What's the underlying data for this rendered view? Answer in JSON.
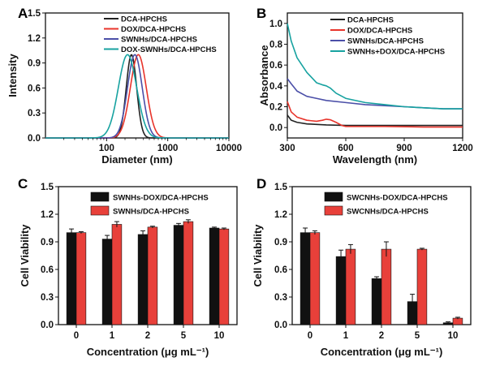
{
  "chart_data": [
    {
      "panel": "A",
      "type": "line",
      "xlabel": "Diameter (nm)",
      "ylabel": "Intensity",
      "xscale": "log",
      "xlim": [
        10,
        10000
      ],
      "ylim": [
        0,
        1.5
      ],
      "xticks": [
        "100",
        "1000",
        "10000"
      ],
      "yticks": [
        "0.0",
        "0.3",
        "0.6",
        "0.9",
        "1.2",
        "1.5"
      ],
      "legend_position": "top-right",
      "series": [
        {
          "name": "DCA-HPCHS",
          "color": "#222222",
          "peak": 255,
          "width": 0.085
        },
        {
          "name": "DOX/DCA-HPCHS",
          "color": "#e8342b",
          "peak": 330,
          "width": 0.13
        },
        {
          "name": "SWNHs/DCA-HPCHS",
          "color": "#4b4fa8",
          "peak": 290,
          "width": 0.12
        },
        {
          "name": "DOX-SWNHs/DCA-HPCHS",
          "color": "#17a2a0",
          "peak": 220,
          "width": 0.15
        }
      ]
    },
    {
      "panel": "B",
      "type": "line",
      "xlabel": "Wavelength (nm)",
      "ylabel": "Absorbance",
      "xlim": [
        300,
        1200
      ],
      "ylim": [
        -0.1,
        1.1
      ],
      "xticks": [
        "300",
        "600",
        "900",
        "1200"
      ],
      "yticks": [
        "0.0",
        "0.2",
        "0.4",
        "0.6",
        "0.8",
        "1.0"
      ],
      "legend_position": "top-right",
      "series": [
        {
          "name": "DCA-HPCHS",
          "color": "#222222",
          "x": [
            300,
            320,
            350,
            400,
            450,
            500,
            600,
            800,
            1000,
            1200
          ],
          "y": [
            0.12,
            0.07,
            0.05,
            0.035,
            0.03,
            0.025,
            0.02,
            0.02,
            0.02,
            0.02
          ]
        },
        {
          "name": "DOX/DCA-HPCHS",
          "color": "#e8342b",
          "x": [
            300,
            320,
            350,
            400,
            450,
            480,
            500,
            520,
            550,
            580,
            600,
            700,
            800,
            1000,
            1200
          ],
          "y": [
            0.25,
            0.15,
            0.1,
            0.07,
            0.06,
            0.07,
            0.08,
            0.075,
            0.05,
            0.02,
            0.01,
            0.01,
            0.01,
            0.005,
            0.005
          ]
        },
        {
          "name": "SWNHs/DCA-HPCHS",
          "color": "#4b4fa8",
          "x": [
            300,
            320,
            350,
            400,
            450,
            500,
            600,
            700,
            800,
            900,
            1000,
            1100,
            1200
          ],
          "y": [
            0.47,
            0.42,
            0.35,
            0.3,
            0.28,
            0.26,
            0.24,
            0.22,
            0.21,
            0.2,
            0.19,
            0.18,
            0.18
          ]
        },
        {
          "name": "SWNHs+DOX/DCA-HPCHS",
          "color": "#17a2a0",
          "x": [
            300,
            320,
            350,
            400,
            450,
            480,
            500,
            520,
            550,
            600,
            700,
            800,
            900,
            1000,
            1100,
            1200
          ],
          "y": [
            1.0,
            0.83,
            0.67,
            0.53,
            0.43,
            0.41,
            0.4,
            0.38,
            0.33,
            0.28,
            0.24,
            0.22,
            0.2,
            0.19,
            0.18,
            0.18
          ]
        }
      ]
    },
    {
      "panel": "C",
      "type": "bar",
      "xlabel": "Concentration (μg mL⁻¹)",
      "ylabel": "Cell Viability",
      "ylim": [
        0,
        1.5
      ],
      "yticks": [
        "0.0",
        "0.3",
        "0.6",
        "0.9",
        "1.2",
        "1.5"
      ],
      "categories": [
        "0",
        "1",
        "2",
        "5",
        "10"
      ],
      "legend_position": "top-right",
      "series": [
        {
          "name": "SWNHs-DOX/DCA-HPCHS",
          "color": "#111111",
          "values": [
            1.0,
            0.93,
            0.98,
            1.08,
            1.05
          ],
          "errors": [
            0.04,
            0.04,
            0.04,
            0.02,
            0.01
          ]
        },
        {
          "name": "SWNHs/DCA-HPCHS",
          "color": "#e8403a",
          "values": [
            1.0,
            1.09,
            1.06,
            1.12,
            1.04
          ],
          "errors": [
            0.01,
            0.03,
            0.01,
            0.02,
            0.01
          ]
        }
      ]
    },
    {
      "panel": "D",
      "type": "bar",
      "xlabel": "Concentration (μg mL⁻¹)",
      "ylabel": "Cell Viability",
      "ylim": [
        0,
        1.5
      ],
      "yticks": [
        "0.0",
        "0.3",
        "0.6",
        "0.9",
        "1.2",
        "1.5"
      ],
      "categories": [
        "0",
        "1",
        "2",
        "5",
        "10"
      ],
      "legend_position": "top-right",
      "series": [
        {
          "name": "SWCNHs-DOX/DCA-HPCHS",
          "color": "#111111",
          "values": [
            1.0,
            0.74,
            0.5,
            0.25,
            0.02
          ],
          "errors": [
            0.05,
            0.07,
            0.02,
            0.08,
            0.01
          ]
        },
        {
          "name": "SWCNHs/DCA-HPCHS",
          "color": "#e8403a",
          "values": [
            1.0,
            0.82,
            0.82,
            0.82,
            0.07
          ],
          "errors": [
            0.02,
            0.05,
            0.08,
            0.01,
            0.01
          ]
        }
      ]
    }
  ]
}
